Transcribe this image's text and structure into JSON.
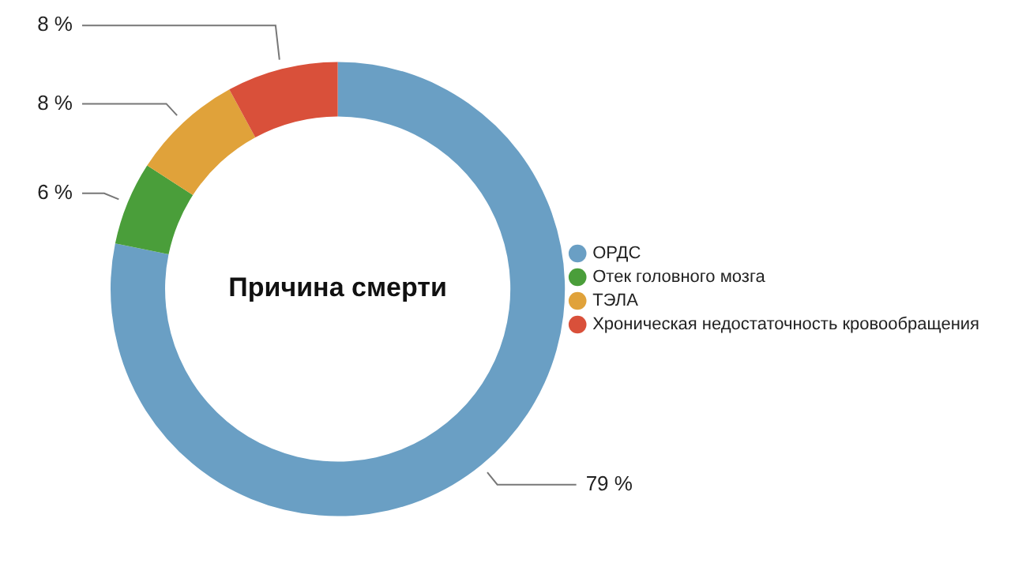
{
  "chart_data": {
    "type": "donut",
    "title": "Причина смерти",
    "categories": [
      "ОРДС",
      "Отек головного мозга",
      "ТЭЛА",
      "Хроническая недостаточность кровообращения"
    ],
    "values": [
      79,
      6,
      8,
      8
    ],
    "value_labels": [
      "79 %",
      "6 %",
      "8 %",
      "8 %"
    ],
    "colors": [
      "#6a9fc4",
      "#4a9e3a",
      "#e0a23a",
      "#d9503a"
    ],
    "legend": "right"
  }
}
